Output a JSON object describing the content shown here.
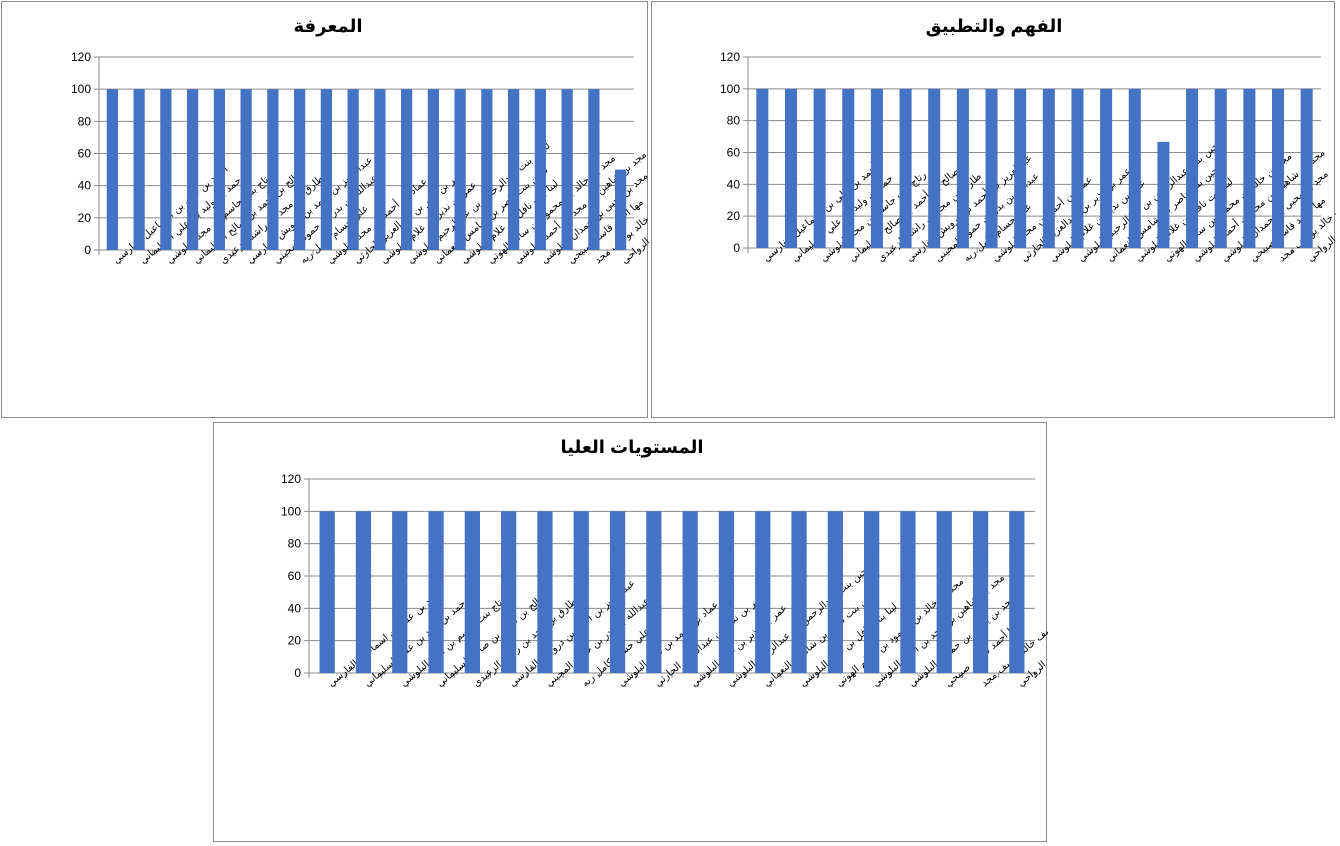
{
  "names": [
    "أحمد بن علي بن اسماعيل الفارسي",
    "حمد بن وليد بن علي السليماني",
    "رتاج بنت جاسم بن مجد البلوشي",
    "صالح بن أحمد بن صالح السليماني",
    "طارق بن مجد بن راشد الزعيدي",
    "عبدالعزيز بن أحمد بن درويش الفارسي",
    "عبدالله بن بدر بن حمود المجيني",
    "علي حسام كامل ربه",
    "عماد بن أحمد بن مجد البلوشي",
    "عمر بن نذير بن عبدالعزيز الحارثي",
    "عمر بن نذير بن غلام البلوشي",
    "لجين بنت عبدالرحمن بن عبدالرحيم البلوشي",
    "لجين بنت ناصر بن شامس النعماني",
    "لينا بنت نافل بن غلام البلوشي",
    "مجد بن خالد بن محمود بن سالم الهوتي",
    "مجد بن شاهين بن مجد بن أحمد البلوشي",
    "مجد بن يحيى بن حمدان البلوشي",
    "مها أحمد قاسم صبيحي",
    "يوسف خالد يوسف مجد",
    "مرشد بن ناصر بن سعيد الرواحي"
  ],
  "chart_data": [
    {
      "type": "bar",
      "title": "المعرفة",
      "categories_ref": "names",
      "values": [
        100,
        100,
        100,
        100,
        100,
        100,
        100,
        100,
        100,
        100,
        100,
        100,
        100,
        100,
        100,
        100,
        100,
        100,
        100,
        50
      ],
      "ylim": [
        0,
        120
      ],
      "yticks": [
        0,
        20,
        40,
        60,
        80,
        100,
        120
      ],
      "grid": true,
      "legend": "none",
      "bar_color": "#4472C4"
    },
    {
      "type": "bar",
      "title": "الفهم والتطبيق",
      "categories_ref": "names",
      "values": [
        100,
        100,
        100,
        100,
        100,
        100,
        100,
        100,
        100,
        100,
        100,
        100,
        100,
        100,
        66.7,
        100,
        100,
        100,
        100,
        100
      ],
      "ylim": [
        0,
        120
      ],
      "yticks": [
        0,
        20,
        40,
        60,
        80,
        100,
        120
      ],
      "grid": true,
      "legend": "none",
      "bar_color": "#4472C4"
    },
    {
      "type": "bar",
      "title": "المستويات العليا",
      "categories_ref": "names",
      "values": [
        100,
        100,
        100,
        100,
        100,
        100,
        100,
        100,
        100,
        100,
        100,
        100,
        100,
        100,
        100,
        100,
        100,
        100,
        100,
        100
      ],
      "ylim": [
        0,
        120
      ],
      "yticks": [
        0,
        20,
        40,
        60,
        80,
        100,
        120
      ],
      "grid": true,
      "legend": "none",
      "bar_color": "#4472C4"
    }
  ]
}
